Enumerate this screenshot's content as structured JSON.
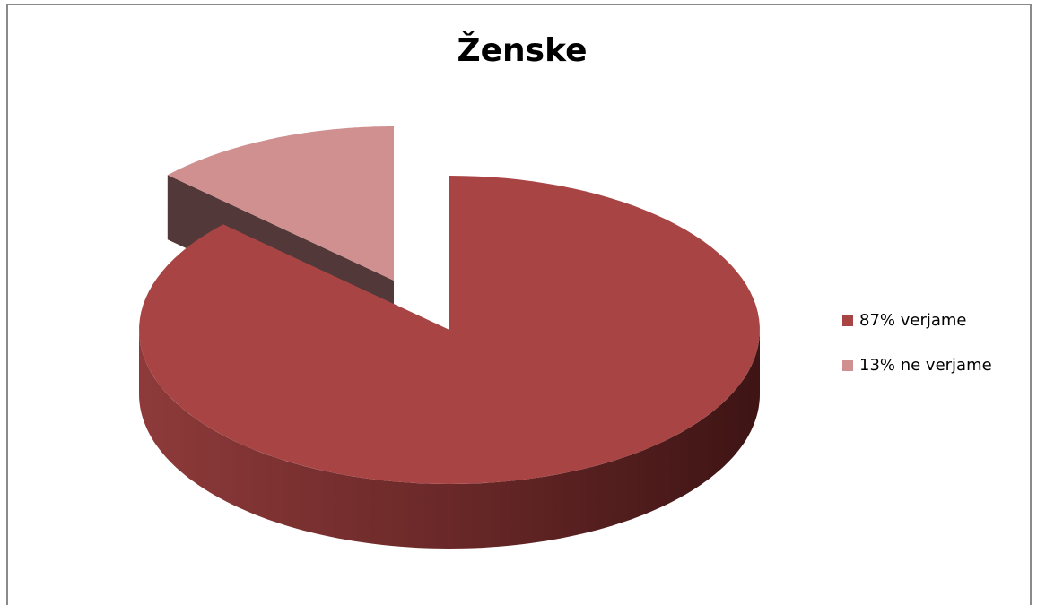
{
  "chart_data": {
    "type": "pie",
    "title": "Ženske",
    "categories": [
      "87% verjame",
      "13% ne verjame"
    ],
    "values": [
      87,
      13
    ],
    "colors": [
      "#a84444",
      "#d09090"
    ],
    "legend": "right"
  }
}
